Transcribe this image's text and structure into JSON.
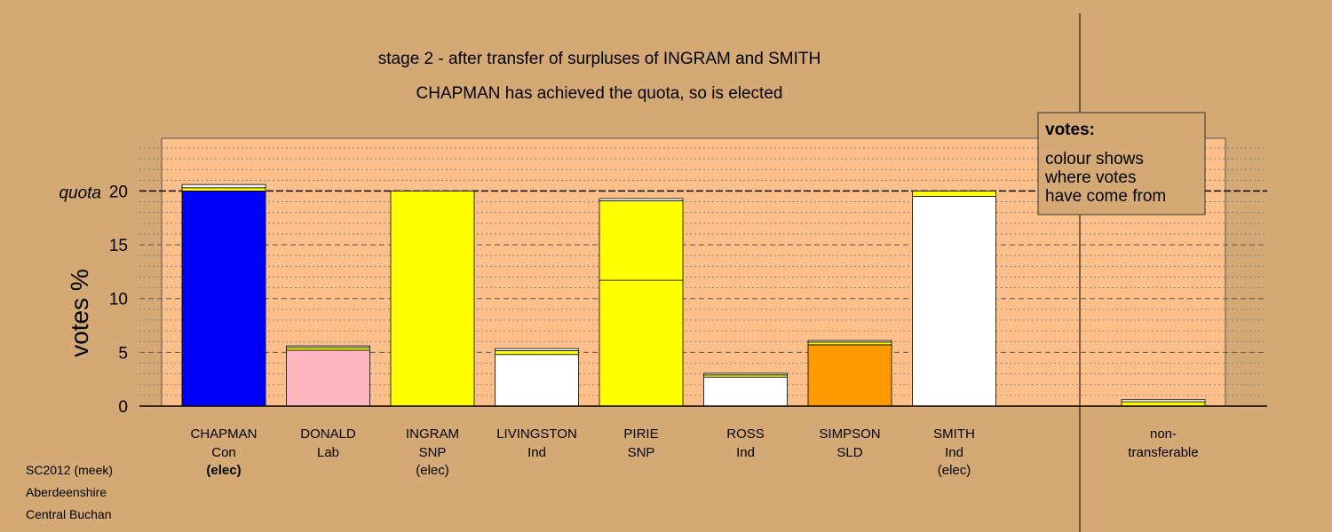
{
  "chart_data": {
    "type": "bar",
    "title": "stage 2 - after transfer of surpluses of INGRAM and SMITH",
    "subtitle": "CHAPMAN has achieved the quota, so is elected",
    "ylabel": "votes %",
    "quota_label": "quota",
    "quota": 20,
    "ylim": [
      0,
      24.9
    ],
    "yticks": [
      "0",
      "5",
      "10",
      "15",
      "20"
    ],
    "ytick_values": [
      0,
      5,
      10,
      15,
      20
    ],
    "candidates": [
      {
        "name": "CHAPMAN",
        "party": "Con",
        "status": "(elec)",
        "status_bold": true,
        "segments": [
          {
            "value": 20.0,
            "color": "#0000ff"
          },
          {
            "value": 0.3,
            "color": "#ffff00"
          },
          {
            "value": 0.3,
            "color": "#ffffff"
          }
        ]
      },
      {
        "name": "DONALD",
        "party": "Lab",
        "status": "",
        "status_bold": false,
        "segments": [
          {
            "value": 5.2,
            "color": "#ffb6c1"
          },
          {
            "value": 0.25,
            "color": "#ffff00"
          },
          {
            "value": 0.15,
            "color": "#ffffff"
          }
        ]
      },
      {
        "name": "INGRAM",
        "party": "SNP",
        "status": "(elec)",
        "status_bold": false,
        "segments": [
          {
            "value": 20.0,
            "color": "#ffff00"
          }
        ]
      },
      {
        "name": "LIVINGSTON",
        "party": "Ind",
        "status": "",
        "status_bold": false,
        "segments": [
          {
            "value": 4.8,
            "color": "#ffffff"
          },
          {
            "value": 0.35,
            "color": "#ffff00"
          },
          {
            "value": 0.2,
            "color": "#ffffff"
          }
        ]
      },
      {
        "name": "PIRIE",
        "party": "SNP",
        "status": "",
        "status_bold": false,
        "segments": [
          {
            "value": 11.7,
            "color": "#ffff00"
          },
          {
            "value": 7.4,
            "color": "#ffff00"
          },
          {
            "value": 0.2,
            "color": "#ffffff"
          }
        ]
      },
      {
        "name": "ROSS",
        "party": "Ind",
        "status": "",
        "status_bold": false,
        "segments": [
          {
            "value": 2.7,
            "color": "#ffffff"
          },
          {
            "value": 0.2,
            "color": "#ffff00"
          },
          {
            "value": 0.15,
            "color": "#ffffff"
          }
        ]
      },
      {
        "name": "SIMPSON",
        "party": "SLD",
        "status": "",
        "status_bold": false,
        "segments": [
          {
            "value": 5.7,
            "color": "#ff9900"
          },
          {
            "value": 0.25,
            "color": "#ffff00"
          },
          {
            "value": 0.15,
            "color": "#ffffff"
          }
        ]
      },
      {
        "name": "SMITH",
        "party": "Ind",
        "status": "(elec)",
        "status_bold": false,
        "segments": [
          {
            "value": 19.5,
            "color": "#ffffff"
          },
          {
            "value": 0.5,
            "color": "#ffff00"
          }
        ]
      }
    ],
    "nontransferable": {
      "label_line1": "non-",
      "label_line2": "transferable",
      "segments": [
        {
          "value": 0.4,
          "color": "#ffff00"
        },
        {
          "value": 0.2,
          "color": "#ffffff"
        }
      ]
    },
    "legend": {
      "title": "votes:",
      "lines": [
        "colour shows",
        "where votes",
        "have come from"
      ]
    },
    "colors": {
      "background": "#d4a975",
      "plot_background": "#fdc08a"
    }
  },
  "footer": {
    "line1": "SC2012 (meek)",
    "line2": "Aberdeenshire",
    "line3": "Central Buchan"
  }
}
